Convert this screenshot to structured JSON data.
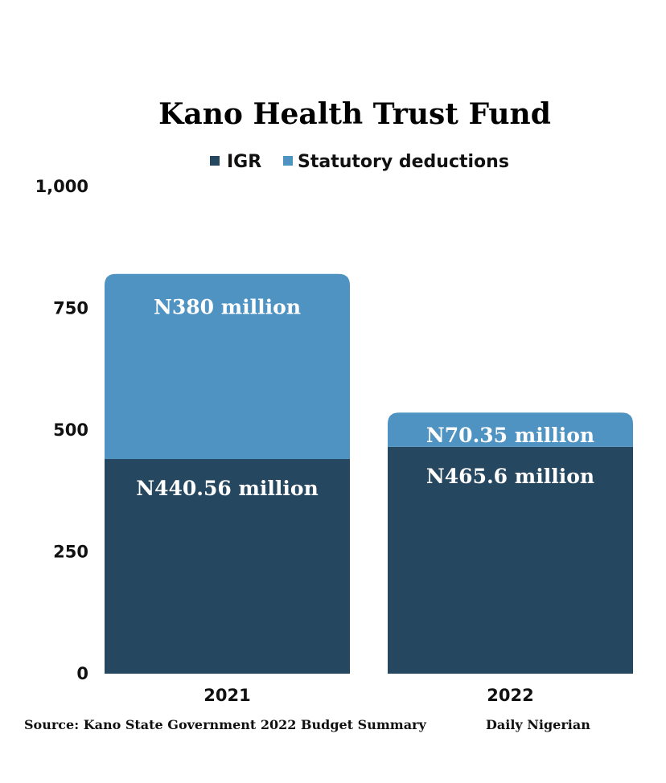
{
  "chart_data": {
    "type": "bar",
    "stacked": true,
    "title": "Kano Health Trust Fund",
    "categories": [
      "2021",
      "2022"
    ],
    "series": [
      {
        "name": "IGR",
        "color": "#25475f",
        "values": [
          440.56,
          465.6
        ],
        "labels": [
          "N440.56 million",
          "N465.6 million"
        ]
      },
      {
        "name": "Statutory deductions",
        "color": "#4f93c3",
        "values": [
          380,
          70.35
        ],
        "labels": [
          "N380 million",
          "N70.35 million"
        ]
      }
    ],
    "ylim": [
      0,
      1000
    ],
    "yticks": [
      0,
      250,
      500,
      750,
      1000
    ],
    "ytick_labels": [
      "0",
      "250",
      "500",
      "750",
      "1,000"
    ],
    "xlabel": "",
    "ylabel": "",
    "grid": false,
    "legend_position": "top-center"
  },
  "footer": {
    "source": "Source: Kano State Government 2022 Budget Summary",
    "publisher": "Daily Nigerian"
  }
}
